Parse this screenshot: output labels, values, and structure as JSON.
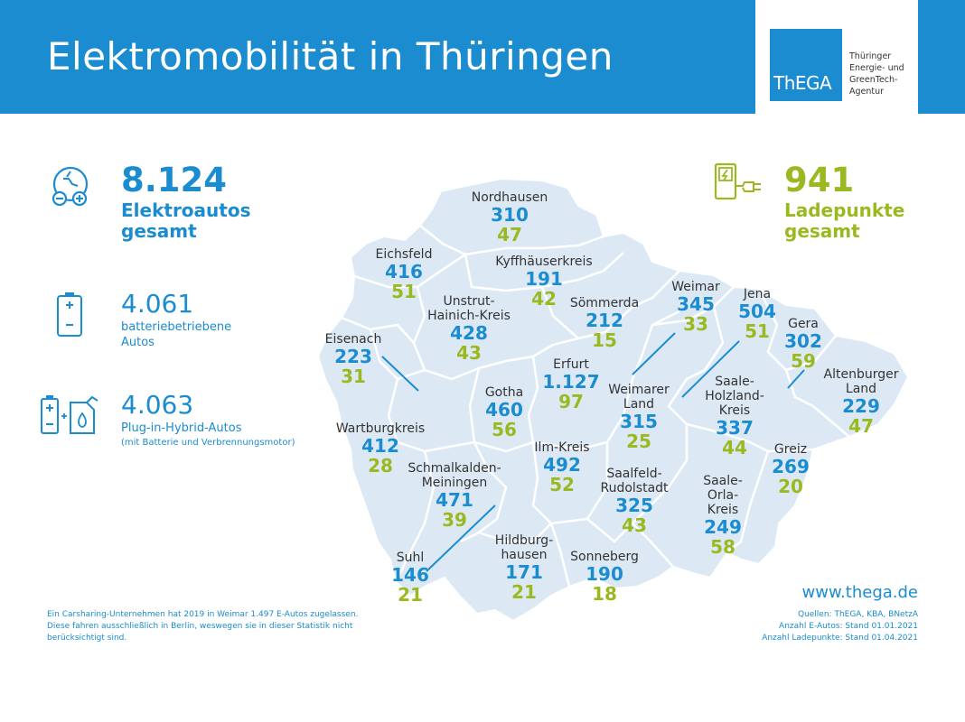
{
  "header": {
    "title": "Elektromobilität in Thüringen",
    "logo": {
      "mark": "ThEGA",
      "lines": [
        "Thüringer",
        "Energie- und",
        "GreenTech-",
        "Agentur"
      ]
    }
  },
  "totals": {
    "ev": {
      "value": "8.124",
      "label_lines": [
        "Elektroautos",
        "gesamt"
      ],
      "icon": "electric-car-icon"
    },
    "charging": {
      "value": "941",
      "label_lines": [
        "Ladepunkte",
        "gesamt"
      ],
      "icon": "charging-station-icon"
    },
    "bev": {
      "value": "4.061",
      "label_lines": [
        "batteriebetriebene",
        "Autos"
      ],
      "icon": "battery-icon"
    },
    "phev": {
      "value": "4.063",
      "label": "Plug-in-Hybrid-Autos",
      "note": "(mit Batterie und Verbrennungsmotor)",
      "icon": "battery-fuel-icon"
    }
  },
  "districts": [
    {
      "name_lines": [
        "Nordhausen"
      ],
      "ev": "310",
      "cp": "47"
    },
    {
      "name_lines": [
        "Eichsfeld"
      ],
      "ev": "416",
      "cp": "51"
    },
    {
      "name_lines": [
        "Kyffhäuserkreis"
      ],
      "ev": "191",
      "cp": "42"
    },
    {
      "name_lines": [
        "Unstrut-",
        "Hainich-Kreis"
      ],
      "ev": "428",
      "cp": "43"
    },
    {
      "name_lines": [
        "Sömmerda"
      ],
      "ev": "212",
      "cp": "15"
    },
    {
      "name_lines": [
        "Weimar"
      ],
      "ev": "345",
      "cp": "33"
    },
    {
      "name_lines": [
        "Jena"
      ],
      "ev": "504",
      "cp": "51"
    },
    {
      "name_lines": [
        "Gera"
      ],
      "ev": "302",
      "cp": "59"
    },
    {
      "name_lines": [
        "Eisenach"
      ],
      "ev": "223",
      "cp": "31"
    },
    {
      "name_lines": [
        "Erfurt"
      ],
      "ev": "1.127",
      "cp": "97"
    },
    {
      "name_lines": [
        "Gotha"
      ],
      "ev": "460",
      "cp": "56"
    },
    {
      "name_lines": [
        "Weimarer",
        "Land"
      ],
      "ev": "315",
      "cp": "25"
    },
    {
      "name_lines": [
        "Saale-",
        "Holzland-",
        "Kreis"
      ],
      "ev": "337",
      "cp": "44"
    },
    {
      "name_lines": [
        "Altenburger",
        "Land"
      ],
      "ev": "229",
      "cp": "47"
    },
    {
      "name_lines": [
        "Wartburgkreis"
      ],
      "ev": "412",
      "cp": "28"
    },
    {
      "name_lines": [
        "Ilm-Kreis"
      ],
      "ev": "492",
      "cp": "52"
    },
    {
      "name_lines": [
        "Schmalkalden-",
        "Meiningen"
      ],
      "ev": "471",
      "cp": "39"
    },
    {
      "name_lines": [
        "Saalfeld-",
        "Rudolstadt"
      ],
      "ev": "325",
      "cp": "43"
    },
    {
      "name_lines": [
        "Greiz"
      ],
      "ev": "269",
      "cp": "20"
    },
    {
      "name_lines": [
        "Saale-",
        "Orla-",
        "Kreis"
      ],
      "ev": "249",
      "cp": "58"
    },
    {
      "name_lines": [
        "Suhl"
      ],
      "ev": "146",
      "cp": "21"
    },
    {
      "name_lines": [
        "Hildburg-",
        "hausen"
      ],
      "ev": "171",
      "cp": "21"
    },
    {
      "name_lines": [
        "Sonneberg"
      ],
      "ev": "190",
      "cp": "18"
    }
  ],
  "footnote": "Ein Carsharing-Unternehmen hat 2019 in Weimar 1.497 E-Autos zugelassen. Diese fahren ausschließlich in Berlin, weswegen sie in dieser Statistik nicht berücksichtigt sind.",
  "website": "www.thega.de",
  "sources": [
    "Quellen: ThEGA, KBA, BNetzA",
    "Anzahl E-Autos: Stand 01.01.2021",
    "Anzahl Ladepunkte: Stand 01.04.2021"
  ],
  "colors": {
    "brand_blue": "#1a8ccf",
    "accent_green": "#9ab921",
    "map_fill": "#dce9f5"
  }
}
